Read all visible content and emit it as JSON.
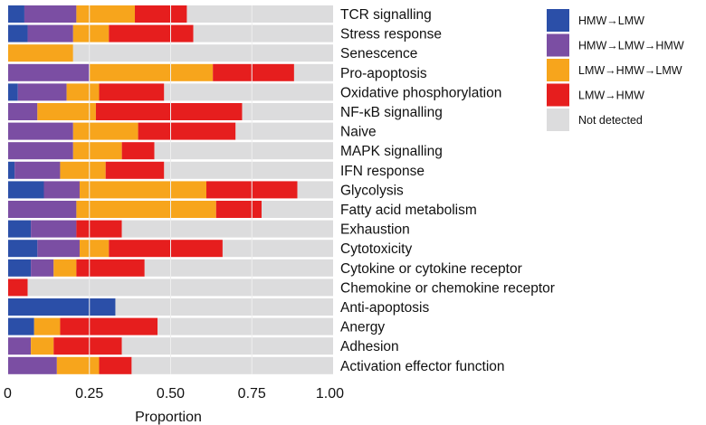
{
  "chart_data": {
    "type": "bar",
    "orientation": "horizontal",
    "stacked": true,
    "title": "",
    "xlabel": "Proportion",
    "ylabel": "",
    "xlim": [
      0,
      1
    ],
    "xticks": [
      "0",
      "0.25",
      "0.50",
      "0.75",
      "1.00"
    ],
    "xtick_values": [
      0,
      0.25,
      0.5,
      0.75,
      1.0
    ],
    "grid": "vertical",
    "legend_position": "top-right",
    "categories": [
      "TCR signalling",
      "Stress response",
      "Senescence",
      "Pro-apoptosis",
      "Oxidative phosphorylation",
      "NF-κB signalling",
      "Naive",
      "MAPK signalling",
      "IFN response",
      "Glycolysis",
      "Fatty acid metabolism",
      "Exhaustion",
      "Cytotoxicity",
      "Cytokine or cytokine receptor",
      "Chemokine or chemokine receptor",
      "Anti-apoptosis",
      "Anergy",
      "Adhesion",
      "Activation effector function"
    ],
    "series": [
      {
        "name": "HMW→LMW",
        "color": "#2b4fa8",
        "values": [
          0.05,
          0.06,
          0,
          0,
          0.03,
          0,
          0,
          0,
          0.02,
          0.11,
          0,
          0.07,
          0.09,
          0.07,
          0,
          0.33,
          0.08,
          0,
          0
        ]
      },
      {
        "name": "HMW→LMW→HMW",
        "color": "#7b4ea3",
        "values": [
          0.16,
          0.14,
          0,
          0.25,
          0.15,
          0.09,
          0.2,
          0.2,
          0.14,
          0.11,
          0.21,
          0.14,
          0.13,
          0.07,
          0,
          0,
          0,
          0.07,
          0.15
        ]
      },
      {
        "name": "LMW→HMW→LMW",
        "color": "#f7a51c",
        "values": [
          0.18,
          0.11,
          0.2,
          0.38,
          0.1,
          0.18,
          0.2,
          0.15,
          0.14,
          0.39,
          0.43,
          0,
          0.09,
          0.07,
          0,
          0,
          0.08,
          0.07,
          0.13
        ]
      },
      {
        "name": "LMW→HMW",
        "color": "#e61e1e",
        "values": [
          0.16,
          0.26,
          0,
          0.25,
          0.2,
          0.45,
          0.3,
          0.1,
          0.18,
          0.28,
          0.14,
          0.14,
          0.35,
          0.21,
          0.06,
          0,
          0.3,
          0.21,
          0.1
        ]
      },
      {
        "name": "Not detected",
        "color": "#dcdcdd",
        "values": "remainder"
      }
    ]
  }
}
